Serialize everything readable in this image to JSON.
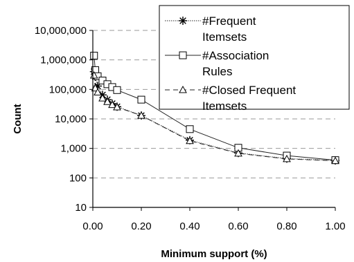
{
  "chart_data": {
    "type": "line",
    "xlabel": "Minimum support (%)",
    "ylabel": "Count",
    "x_scale": "linear",
    "y_scale": "log",
    "xlim": [
      0,
      1.0
    ],
    "ylim": [
      10,
      10000000
    ],
    "x_ticks": [
      "0.00",
      "0.20",
      "0.40",
      "0.60",
      "0.80",
      "1.00"
    ],
    "y_ticks": [
      "10",
      "100",
      "1,000",
      "10,000",
      "100,000",
      "1,000,000",
      "10,000,000"
    ],
    "grid": "horizontal-dashed",
    "legend_position": "top-right",
    "series": [
      {
        "name": "#Frequent Itemsets",
        "legend_lines": [
          "#Frequent",
          "Itemsets"
        ],
        "marker": "asterisk",
        "line_style": "dotted",
        "x": [
          0.005,
          0.01,
          0.02,
          0.04,
          0.06,
          0.08,
          0.1,
          0.2,
          0.4,
          0.6,
          0.8,
          1.0
        ],
        "y": [
          400000,
          270000,
          130000,
          65000,
          45000,
          33000,
          26000,
          13000,
          1900,
          700,
          450,
          390
        ]
      },
      {
        "name": "#Association Rules",
        "legend_lines": [
          "#Association",
          "Rules"
        ],
        "marker": "square",
        "line_style": "solid",
        "x": [
          0.005,
          0.01,
          0.02,
          0.04,
          0.06,
          0.08,
          0.1,
          0.2,
          0.4,
          0.6,
          0.8,
          1.0
        ],
        "y": [
          1400000,
          450000,
          280000,
          200000,
          150000,
          120000,
          95000,
          45000,
          4500,
          1050,
          570,
          400
        ]
      },
      {
        "name": "#Closed Frequent Itemsets",
        "legend_lines": [
          "#Closed Frequent",
          "Itemsets"
        ],
        "marker": "triangle",
        "line_style": "dashed",
        "x": [
          0.005,
          0.01,
          0.02,
          0.04,
          0.06,
          0.08,
          0.1,
          0.2,
          0.4,
          0.6,
          0.8,
          1.0
        ],
        "y": [
          300000,
          110000,
          80000,
          50000,
          38000,
          30000,
          25000,
          13000,
          1800,
          680,
          440,
          380
        ]
      }
    ]
  }
}
